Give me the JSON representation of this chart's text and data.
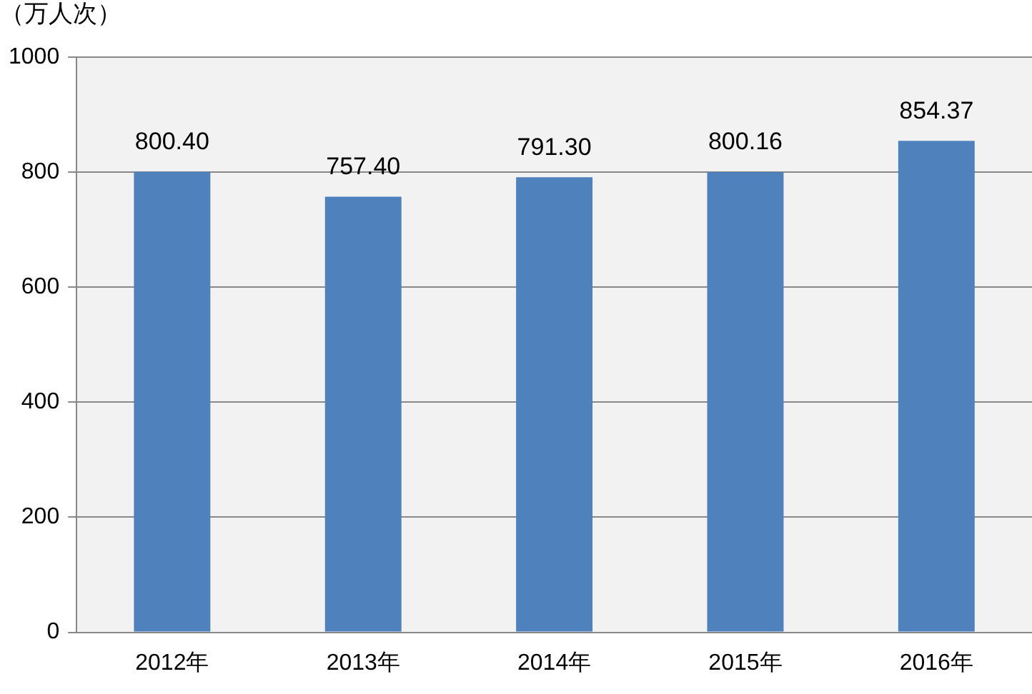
{
  "chart_data": {
    "type": "bar",
    "ylabel": "（万人次）",
    "categories": [
      "2012年",
      "2013年",
      "2014年",
      "2015年",
      "2016年"
    ],
    "values": [
      800.4,
      757.4,
      791.3,
      800.16,
      854.37
    ],
    "value_labels": [
      "800.40",
      "757.40",
      "791.30",
      "800.16",
      "854.37"
    ],
    "color": "#4f81bd",
    "ylim": [
      0,
      1000
    ],
    "yticks": [
      0,
      200,
      400,
      600,
      800,
      1000
    ],
    "grid": "y",
    "legend": false
  }
}
